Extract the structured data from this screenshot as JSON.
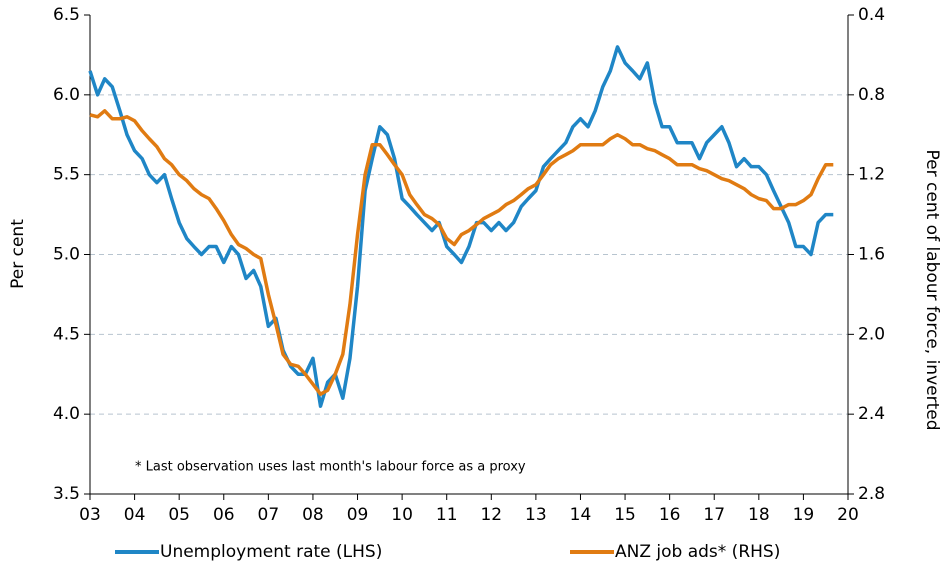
{
  "chart_data": {
    "type": "line",
    "ylabel": "Per cent",
    "y2label": "Per cent of labour force, inverted",
    "annotation": "* Last observation uses last month's labour force as a proxy",
    "x": [
      2003,
      2003.17,
      2003.33,
      2003.5,
      2003.67,
      2003.83,
      2004,
      2004.17,
      2004.33,
      2004.5,
      2004.67,
      2004.83,
      2005,
      2005.17,
      2005.33,
      2005.5,
      2005.67,
      2005.83,
      2006,
      2006.17,
      2006.33,
      2006.5,
      2006.67,
      2006.83,
      2007,
      2007.17,
      2007.33,
      2007.5,
      2007.67,
      2007.83,
      2008,
      2008.17,
      2008.33,
      2008.5,
      2008.67,
      2008.83,
      2009,
      2009.17,
      2009.33,
      2009.5,
      2009.67,
      2009.83,
      2010,
      2010.17,
      2010.33,
      2010.5,
      2010.67,
      2010.83,
      2011,
      2011.17,
      2011.33,
      2011.5,
      2011.67,
      2011.83,
      2012,
      2012.17,
      2012.33,
      2012.5,
      2012.67,
      2012.83,
      2013,
      2013.17,
      2013.33,
      2013.5,
      2013.67,
      2013.83,
      2014,
      2014.17,
      2014.33,
      2014.5,
      2014.67,
      2014.83,
      2015,
      2015.17,
      2015.33,
      2015.5,
      2015.67,
      2015.83,
      2016,
      2016.17,
      2016.33,
      2016.5,
      2016.67,
      2016.83,
      2017,
      2017.17,
      2017.33,
      2017.5,
      2017.67,
      2017.83,
      2018,
      2018.17,
      2018.33,
      2018.5,
      2018.67,
      2018.83,
      2019,
      2019.17,
      2019.33,
      2019.5,
      2019.67
    ],
    "series": [
      {
        "name": "Unemployment rate (LHS)",
        "color": "#1f86c6",
        "axis": "y",
        "values": [
          6.15,
          6.0,
          6.1,
          6.05,
          5.9,
          5.75,
          5.65,
          5.6,
          5.5,
          5.45,
          5.5,
          5.35,
          5.2,
          5.1,
          5.05,
          5.0,
          5.05,
          5.05,
          4.95,
          5.05,
          5.0,
          4.85,
          4.9,
          4.8,
          4.55,
          4.6,
          4.4,
          4.3,
          4.25,
          4.25,
          4.35,
          4.05,
          4.2,
          4.25,
          4.1,
          4.35,
          4.8,
          5.4,
          5.6,
          5.8,
          5.75,
          5.6,
          5.35,
          5.3,
          5.25,
          5.2,
          5.15,
          5.2,
          5.05,
          5.0,
          4.95,
          5.05,
          5.2,
          5.2,
          5.15,
          5.2,
          5.15,
          5.2,
          5.3,
          5.35,
          5.4,
          5.55,
          5.6,
          5.65,
          5.7,
          5.8,
          5.85,
          5.8,
          5.9,
          6.05,
          6.15,
          6.3,
          6.2,
          6.15,
          6.1,
          6.2,
          5.95,
          5.8,
          5.8,
          5.7,
          5.7,
          5.7,
          5.6,
          5.7,
          5.75,
          5.8,
          5.7,
          5.55,
          5.6,
          5.55,
          5.55,
          5.5,
          5.4,
          5.3,
          5.2,
          5.05,
          5.05,
          5.0,
          5.2,
          5.25,
          5.25
        ]
      },
      {
        "name": "ANZ job ads* (RHS)",
        "color": "#e07b12",
        "axis": "y2",
        "values": [
          0.9,
          0.91,
          0.88,
          0.92,
          0.92,
          0.91,
          0.93,
          0.98,
          1.02,
          1.06,
          1.12,
          1.15,
          1.2,
          1.23,
          1.27,
          1.3,
          1.32,
          1.37,
          1.43,
          1.5,
          1.55,
          1.57,
          1.6,
          1.62,
          1.8,
          1.95,
          2.1,
          2.15,
          2.16,
          2.2,
          2.25,
          2.3,
          2.28,
          2.2,
          2.1,
          1.85,
          1.5,
          1.2,
          1.05,
          1.05,
          1.1,
          1.15,
          1.2,
          1.3,
          1.35,
          1.4,
          1.42,
          1.45,
          1.52,
          1.55,
          1.5,
          1.48,
          1.45,
          1.42,
          1.4,
          1.38,
          1.35,
          1.33,
          1.3,
          1.27,
          1.25,
          1.2,
          1.15,
          1.12,
          1.1,
          1.08,
          1.05,
          1.05,
          1.05,
          1.05,
          1.02,
          1.0,
          1.02,
          1.05,
          1.05,
          1.07,
          1.08,
          1.1,
          1.12,
          1.15,
          1.15,
          1.15,
          1.17,
          1.18,
          1.2,
          1.22,
          1.23,
          1.25,
          1.27,
          1.3,
          1.32,
          1.33,
          1.37,
          1.37,
          1.35,
          1.35,
          1.33,
          1.3,
          1.22,
          1.15,
          1.15
        ]
      }
    ],
    "xlim": [
      2003,
      2020
    ],
    "xticks": [
      {
        "value": 2003,
        "label": "03"
      },
      {
        "value": 2004,
        "label": "04"
      },
      {
        "value": 2005,
        "label": "05"
      },
      {
        "value": 2006,
        "label": "06"
      },
      {
        "value": 2007,
        "label": "07"
      },
      {
        "value": 2008,
        "label": "08"
      },
      {
        "value": 2009,
        "label": "09"
      },
      {
        "value": 2010,
        "label": "10"
      },
      {
        "value": 2011,
        "label": "11"
      },
      {
        "value": 2012,
        "label": "12"
      },
      {
        "value": 2013,
        "label": "13"
      },
      {
        "value": 2014,
        "label": "14"
      },
      {
        "value": 2015,
        "label": "15"
      },
      {
        "value": 2016,
        "label": "16"
      },
      {
        "value": 2017,
        "label": "17"
      },
      {
        "value": 2018,
        "label": "18"
      },
      {
        "value": 2019,
        "label": "19"
      },
      {
        "value": 2020,
        "label": "20"
      }
    ],
    "ylim": [
      3.5,
      6.5
    ],
    "yticks": [
      3.5,
      {
        "value": 4,
        "label": "4.0"
      },
      4.5,
      {
        "value": 5,
        "label": "5.0"
      },
      5.5,
      {
        "value": 6,
        "label": "6.0"
      },
      6.5
    ],
    "y2lim": [
      0.4,
      2.8
    ],
    "y2_inverted": true,
    "y2ticks": [
      0.4,
      0.8,
      1.2,
      1.6,
      {
        "value": 2,
        "label": "2.0"
      },
      2.4,
      2.8
    ],
    "grid": true,
    "legend": "bottom"
  }
}
